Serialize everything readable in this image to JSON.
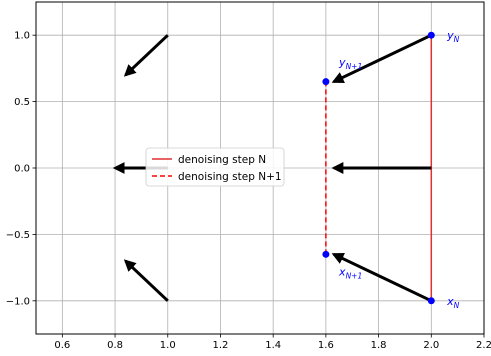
{
  "chart_data": {
    "type": "line",
    "xlim": [
      0.5,
      2.2
    ],
    "ylim": [
      -1.25,
      1.25
    ],
    "xticks": [
      0.6,
      0.8,
      1.0,
      1.2,
      1.4,
      1.6,
      1.8,
      2.0,
      2.2
    ],
    "yticks": [
      -1.0,
      -0.5,
      0.0,
      0.5,
      1.0
    ],
    "xtick_labels": [
      "0.6",
      "0.8",
      "1.0",
      "1.2",
      "1.4",
      "1.6",
      "1.8",
      "2.0",
      "2.2"
    ],
    "ytick_labels": [
      "−1.0",
      "−0.5",
      "0.0",
      "0.5",
      "1.0"
    ],
    "grid": true,
    "legend": {
      "placement": "center-left",
      "entries": [
        {
          "label": "denoising step N",
          "style": "solid",
          "color": "#e03030"
        },
        {
          "label": "denoising step N+1",
          "style": "dashed",
          "color": "#ff0000"
        }
      ]
    },
    "series": [
      {
        "label": "denoising step N",
        "x": [
          2.0,
          2.0
        ],
        "y": [
          -1.0,
          1.0
        ],
        "color": "#e03030",
        "style": "solid"
      },
      {
        "label": "denoising step N+1",
        "x": [
          1.6,
          1.6
        ],
        "y": [
          -0.65,
          0.65
        ],
        "color": "#ff0000",
        "style": "dashed"
      }
    ],
    "points": [
      {
        "x": 2.0,
        "y": 1.0,
        "color": "#0000ff"
      },
      {
        "x": 2.0,
        "y": -1.0,
        "color": "#0000ff"
      },
      {
        "x": 1.6,
        "y": 0.65,
        "color": "#0000ff"
      },
      {
        "x": 1.6,
        "y": -0.65,
        "color": "#0000ff"
      }
    ],
    "point_labels": [
      {
        "text": "y",
        "sub": "N",
        "x": 2.06,
        "y": 1.0
      },
      {
        "text": "x",
        "sub": "N",
        "x": 2.06,
        "y": -1.0
      },
      {
        "text": "y",
        "sub": "N+1",
        "x": 1.65,
        "y": 0.8
      },
      {
        "text": "x",
        "sub": "N+1",
        "x": 1.65,
        "y": -0.78
      }
    ],
    "arrows": [
      {
        "x1": 2.0,
        "y1": 1.0,
        "x2": 1.63,
        "y2": 0.65
      },
      {
        "x1": 2.0,
        "y1": 0.0,
        "x2": 1.63,
        "y2": 0.0
      },
      {
        "x1": 2.0,
        "y1": -1.0,
        "x2": 1.63,
        "y2": -0.65
      },
      {
        "x1": 1.0,
        "y1": 1.0,
        "x2": 0.84,
        "y2": 0.7
      },
      {
        "x1": 1.0,
        "y1": 0.0,
        "x2": 0.8,
        "y2": 0.0
      },
      {
        "x1": 1.0,
        "y1": -1.0,
        "x2": 0.84,
        "y2": -0.7
      }
    ]
  }
}
